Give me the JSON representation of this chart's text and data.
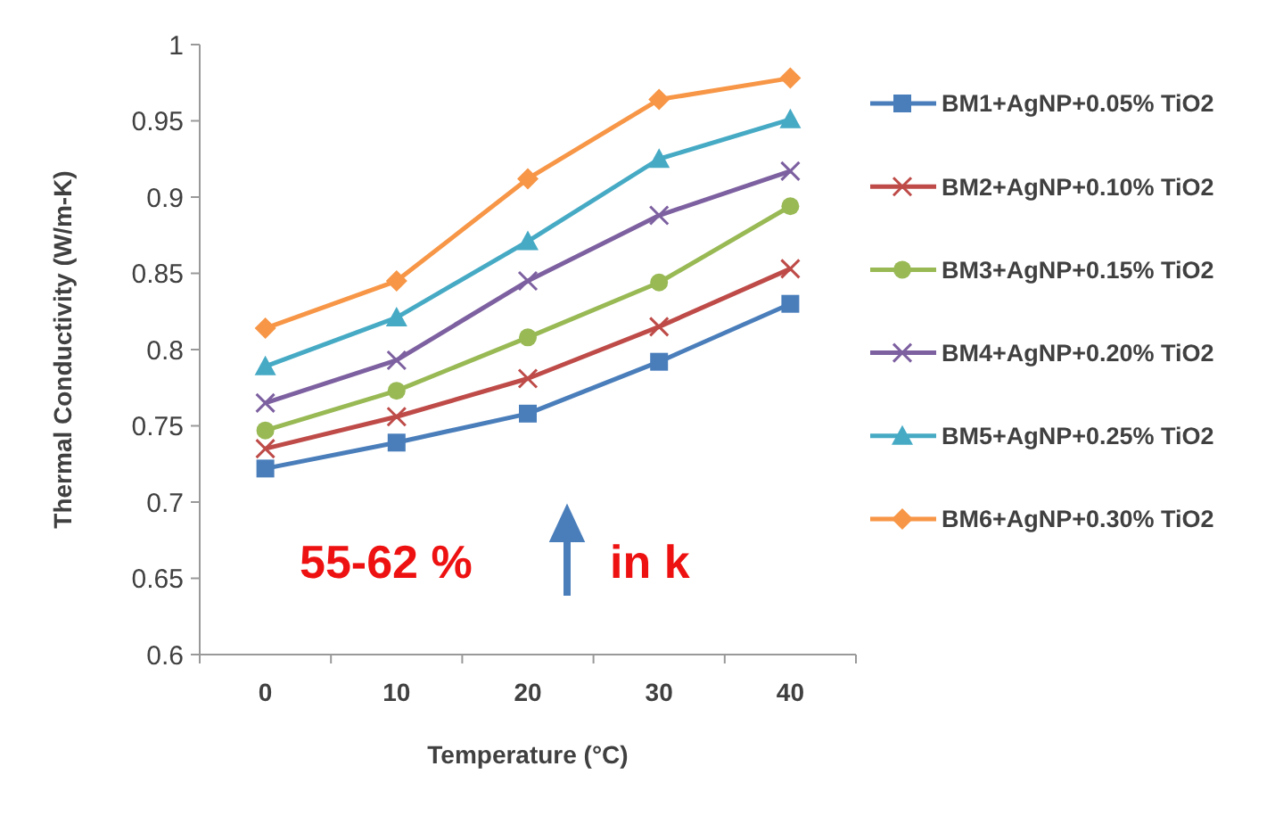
{
  "chart_data": {
    "type": "line",
    "xlabel": "Temperature (°C)",
    "ylabel": "Thermal Conductivity (W/m-K)",
    "categories": [
      "0",
      "10",
      "20",
      "30",
      "40"
    ],
    "ylim": [
      0.6,
      1
    ],
    "yticks": [
      {
        "value": 0.6,
        "label": "0.6"
      },
      {
        "value": 0.65,
        "label": "0.65"
      },
      {
        "value": 0.7,
        "label": "0.7"
      },
      {
        "value": 0.75,
        "label": "0.75"
      },
      {
        "value": 0.8,
        "label": "0.8"
      },
      {
        "value": 0.85,
        "label": "0.85"
      },
      {
        "value": 0.9,
        "label": "0.9"
      },
      {
        "value": 0.95,
        "label": "0.95"
      },
      {
        "value": 1,
        "label": "1"
      }
    ],
    "grid": false,
    "legend": "right",
    "line_style": "solid",
    "series": [
      {
        "name": "BM1+AgNP+0.05% TiO2",
        "color": "#4a7ebb",
        "marker": "square",
        "values": [
          0.722,
          0.739,
          0.758,
          0.792,
          0.83
        ]
      },
      {
        "name": "BM2+AgNP+0.10% TiO2",
        "color": "#be4b48",
        "marker": "cross",
        "values": [
          0.735,
          0.756,
          0.781,
          0.815,
          0.853
        ]
      },
      {
        "name": "BM3+AgNP+0.15% TiO2",
        "color": "#98b954",
        "marker": "circle",
        "values": [
          0.747,
          0.773,
          0.808,
          0.844,
          0.894
        ]
      },
      {
        "name": "BM4+AgNP+0.20% TiO2",
        "color": "#7d60a0",
        "marker": "cross",
        "values": [
          0.765,
          0.793,
          0.845,
          0.888,
          0.917
        ]
      },
      {
        "name": "BM5+AgNP+0.25% TiO2",
        "color": "#46aac5",
        "marker": "triangle",
        "values": [
          0.789,
          0.821,
          0.871,
          0.925,
          0.951
        ]
      },
      {
        "name": "BM6+AgNP+0.30% TiO2",
        "color": "#f79646",
        "marker": "diamond",
        "values": [
          0.814,
          0.845,
          0.912,
          0.964,
          0.978
        ]
      }
    ],
    "annotations": [
      "55-62 %",
      "in k"
    ]
  }
}
